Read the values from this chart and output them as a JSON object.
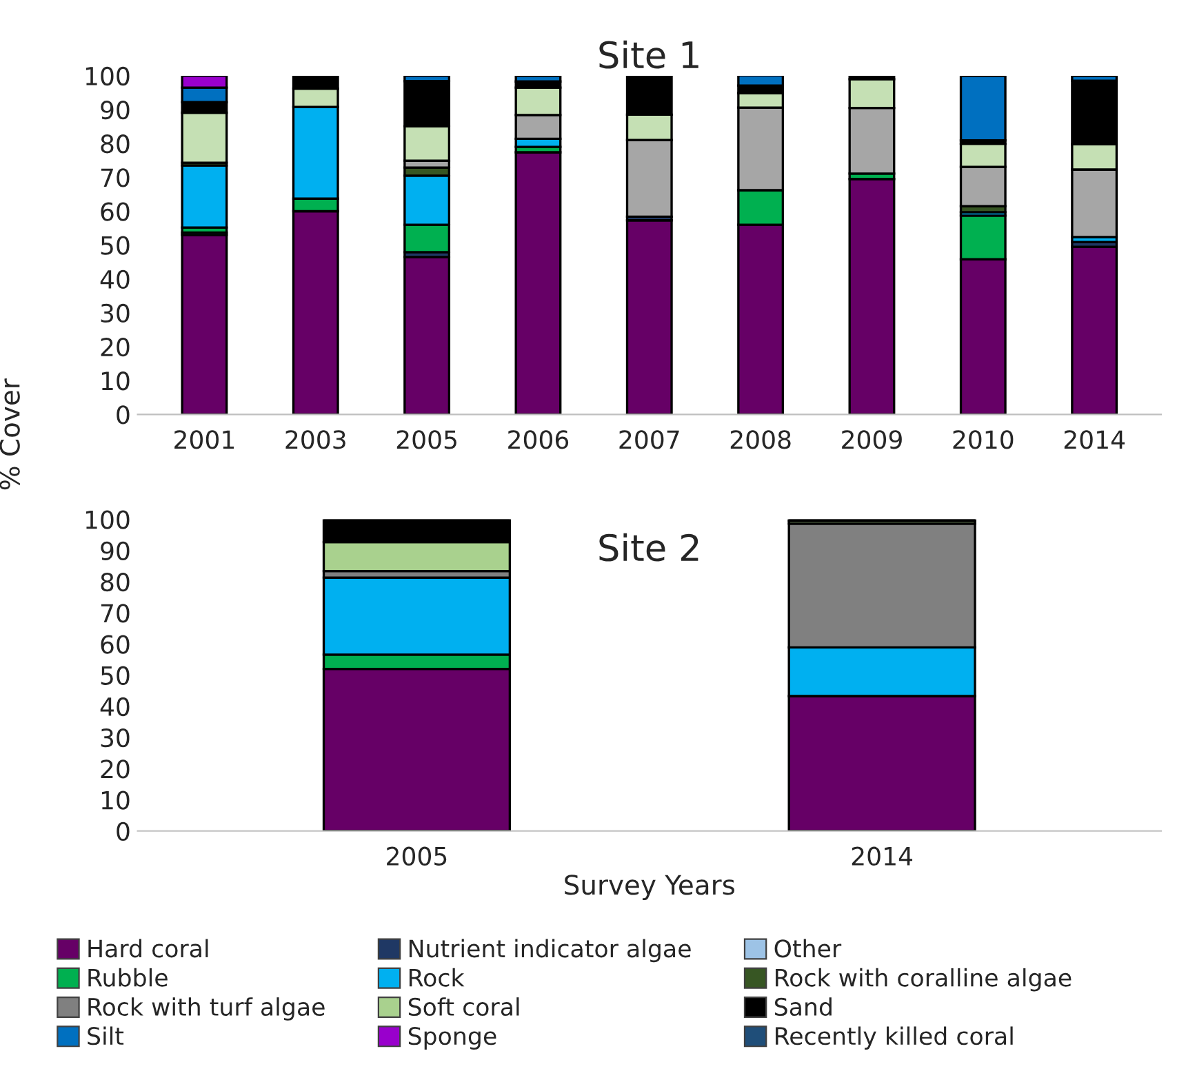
{
  "chart_data": [
    {
      "type": "bar",
      "stacked": true,
      "title": "Site 1",
      "ylabel": "% Cover",
      "categories": [
        "2001",
        "2003",
        "2005",
        "2006",
        "2007",
        "2008",
        "2009",
        "2010",
        "2014"
      ],
      "ylim": [
        0,
        100
      ],
      "yticks": [
        0,
        10,
        20,
        30,
        40,
        50,
        60,
        70,
        80,
        90,
        100
      ],
      "grid": false,
      "series": [
        {
          "color": "#660066",
          "values": [
            53,
            60,
            46.5,
            77.4,
            57.3,
            56,
            69.5,
            45.8,
            49.5
          ]
        },
        {
          "color": "#1f3864",
          "values": [
            0.7,
            null,
            1.4,
            null,
            1.1,
            null,
            null,
            null,
            1.4
          ]
        },
        {
          "color": "#00b050",
          "values": [
            1.5,
            3.7,
            8.1,
            1.6,
            null,
            10.2,
            1.6,
            12.9,
            null
          ]
        },
        {
          "color": "#00b0f0",
          "values": [
            18.3,
            27.1,
            14.5,
            2.4,
            null,
            null,
            null,
            1,
            1.5
          ]
        },
        {
          "color": "#375623",
          "values": [
            0.8,
            null,
            2.4,
            null,
            null,
            null,
            null,
            1.8,
            null
          ]
        },
        {
          "color": "#a6a6a6",
          "values": [
            null,
            null,
            2,
            7,
            22.6,
            24.4,
            19.4,
            11.6,
            19.9
          ]
        },
        {
          "color": "#c5e0b4",
          "values": [
            14.8,
            5.4,
            10.2,
            8.1,
            7.5,
            4.3,
            8.5,
            6.8,
            7.5
          ]
        },
        {
          "color": "#000000",
          "values": [
            3.1,
            3.8,
            13.3,
            1.8,
            11.5,
            2.2,
            0.9,
            1,
            18.7
          ]
        },
        {
          "color": "#0070c0",
          "values": [
            4.3,
            null,
            1.6,
            1.6,
            null,
            3,
            null,
            19,
            1.4
          ]
        },
        {
          "color": "#9900cc",
          "values": [
            3.5,
            null,
            null,
            null,
            null,
            null,
            null,
            null,
            null
          ]
        }
      ]
    },
    {
      "type": "bar",
      "stacked": true,
      "title": "Site 2",
      "xlabel": "Survey Years",
      "categories": [
        "2005",
        "2014"
      ],
      "ylim": [
        0,
        100
      ],
      "yticks": [
        0,
        10,
        20,
        30,
        40,
        50,
        60,
        70,
        80,
        90,
        100
      ],
      "grid": false,
      "legend": "bottom",
      "series": [
        {
          "name": "Hard coral",
          "color": "#660066",
          "values": [
            52,
            43.3
          ]
        },
        {
          "name": "Nutrient indicator algae",
          "color": "#1f3864",
          "values": [
            null,
            null
          ]
        },
        {
          "name": "Other",
          "color": "#9dc3e6",
          "values": [
            null,
            null
          ]
        },
        {
          "name": "Rubble",
          "color": "#00b050",
          "values": [
            4.6,
            null
          ]
        },
        {
          "name": "Rock",
          "color": "#00b0f0",
          "values": [
            24.7,
            15.6
          ]
        },
        {
          "name": "Rock with coralline algae",
          "color": "#375623",
          "values": [
            null,
            null
          ]
        },
        {
          "name": "Rock with turf algae",
          "color": "#808080",
          "values": [
            2.1,
            39.7
          ]
        },
        {
          "name": "Soft coral",
          "color": "#a9d18e",
          "values": [
            9.3,
            0.9
          ]
        },
        {
          "name": "Sand",
          "color": "#000000",
          "values": [
            7.4,
            0.6
          ]
        },
        {
          "name": "Silt",
          "color": "#0070c0",
          "values": [
            null,
            null
          ]
        },
        {
          "name": "Sponge",
          "color": "#9900cc",
          "values": [
            null,
            null
          ]
        },
        {
          "name": "Recently killed coral",
          "color": "#1f4e79",
          "values": [
            null,
            null
          ]
        }
      ]
    }
  ]
}
